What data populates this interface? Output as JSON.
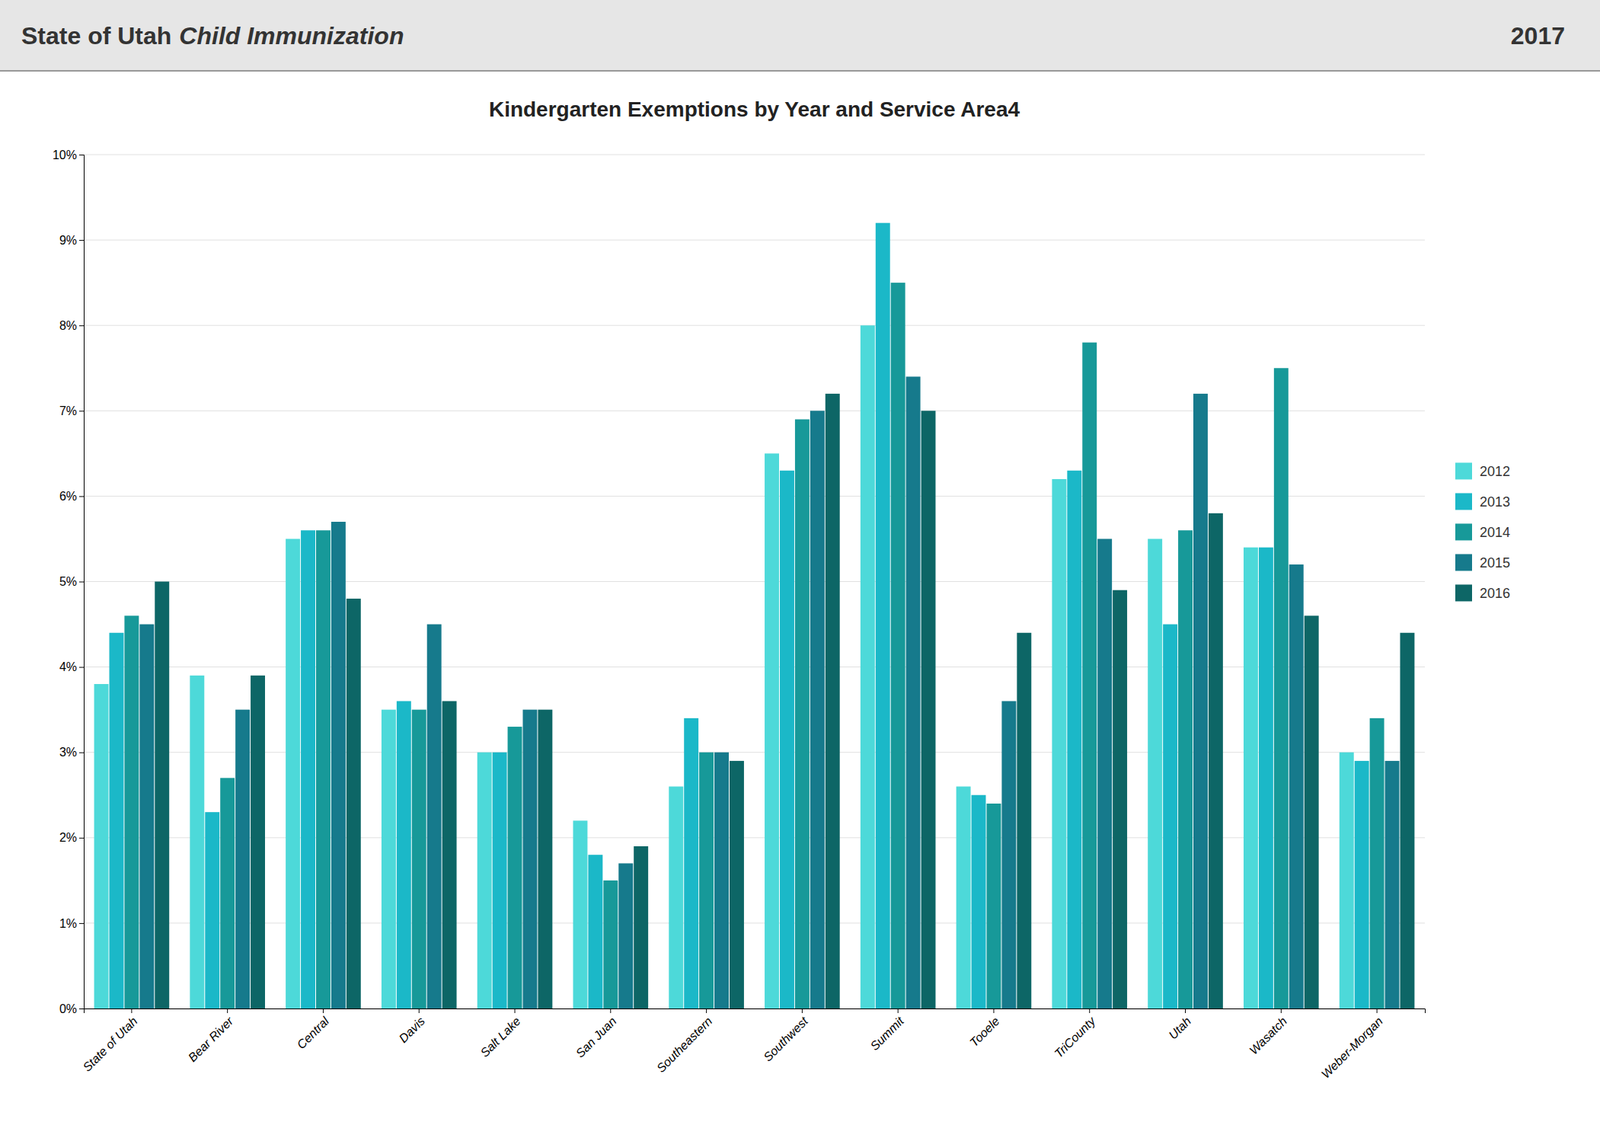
{
  "chart_data": {
    "type": "bar",
    "title": "Kindergarten Exemptions by Year and Service Area4",
    "annotations": [
      "State of Utah",
      "Child Immunization",
      "2017"
    ],
    "categories": [
      "State of Utah",
      "Bear River",
      "Central",
      "Davis",
      "Salt Lake",
      "San Juan",
      "Southeastern",
      "Southwest",
      "Summit",
      "Tooele",
      "TriCounty",
      "Utah",
      "Wasatch",
      "Weber-Morgan"
    ],
    "series": [
      {
        "name": "2012",
        "color": "#4DD9D9",
        "values": [
          3.8,
          3.9,
          5.5,
          3.5,
          3.0,
          2.2,
          2.6,
          6.5,
          8.0,
          2.6,
          6.2,
          5.5,
          5.4,
          3.0
        ]
      },
      {
        "name": "2013",
        "color": "#1BB8C8",
        "values": [
          4.4,
          2.3,
          5.6,
          3.6,
          3.0,
          1.8,
          3.4,
          6.3,
          9.2,
          2.5,
          6.3,
          4.5,
          5.4,
          2.9
        ]
      },
      {
        "name": "2014",
        "color": "#179999",
        "values": [
          4.6,
          2.7,
          5.6,
          3.5,
          3.3,
          1.5,
          3.0,
          6.9,
          8.5,
          2.4,
          7.8,
          5.6,
          7.5,
          3.4
        ]
      },
      {
        "name": "2015",
        "color": "#167A8C",
        "values": [
          4.5,
          3.5,
          5.7,
          4.5,
          3.5,
          1.7,
          3.0,
          7.0,
          7.4,
          3.6,
          5.5,
          7.2,
          5.2,
          2.9
        ]
      },
      {
        "name": "2016",
        "color": "#0D6666",
        "values": [
          5.0,
          3.9,
          4.8,
          3.6,
          3.5,
          1.9,
          2.9,
          7.2,
          7.0,
          4.4,
          4.9,
          5.8,
          4.6,
          4.4
        ]
      }
    ],
    "ylim": [
      0,
      10
    ],
    "yticks": [
      {
        "value": 0,
        "label": "0%"
      },
      {
        "value": 1,
        "label": "1%"
      },
      {
        "value": 2,
        "label": "2%"
      },
      {
        "value": 3,
        "label": "3%"
      },
      {
        "value": 4,
        "label": "4%"
      },
      {
        "value": 5,
        "label": "5%"
      },
      {
        "value": 6,
        "label": "6%"
      },
      {
        "value": 7,
        "label": "7%"
      },
      {
        "value": 8,
        "label": "8%"
      },
      {
        "value": 9,
        "label": "9%"
      },
      {
        "value": 10,
        "label": "10%"
      }
    ],
    "grid": true,
    "legend": "right"
  }
}
